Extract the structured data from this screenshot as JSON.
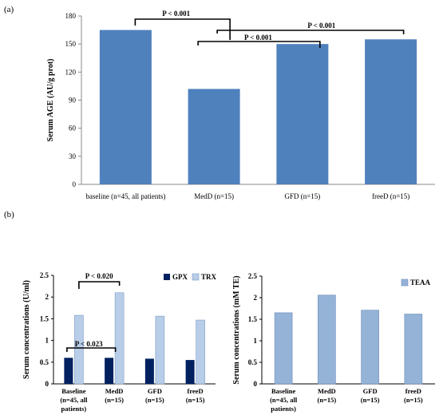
{
  "panel_labels": {
    "a": "(a)",
    "b": "(b)"
  },
  "chart_data": [
    {
      "type": "bar",
      "panel": "(a)",
      "ylabel": "Serum AGE (AU/g prot)",
      "ylim": [
        0,
        180
      ],
      "yticks": [
        "0",
        "30",
        "60",
        "90",
        "120",
        "150",
        "180"
      ],
      "categories": [
        "baseline (n=45, all patients)",
        "MedD (n=15)",
        "GFD (n=15)",
        "freeD (n=15)"
      ],
      "values": [
        165,
        102,
        150,
        155
      ],
      "color": "#4f81bd",
      "grid": false,
      "annotations": [
        {
          "text": "P < 0.001",
          "from": 0,
          "to": 1
        },
        {
          "text": "P < 0.001",
          "from": 1,
          "to": 2
        },
        {
          "text": "P < 0.001",
          "from": 1,
          "to": 3
        }
      ]
    },
    {
      "type": "bar",
      "panel": "(b) left",
      "ylabel": "Serum concentrations (U/ml)",
      "ylim": [
        0,
        2.5
      ],
      "yticks": [
        "0",
        "0.5",
        "1",
        "1.5",
        "2",
        "2.5"
      ],
      "categories": [
        [
          "Baseline",
          "(n=45, all",
          "patients)"
        ],
        [
          "MedD",
          "(n=15)"
        ],
        [
          "GFD",
          "(n=15)"
        ],
        [
          "freeD",
          "(n=15)"
        ]
      ],
      "series": [
        {
          "name": "GPX",
          "values": [
            0.6,
            0.6,
            0.58,
            0.55
          ],
          "color": "#002060"
        },
        {
          "name": "TRX",
          "values": [
            1.58,
            2.1,
            1.56,
            1.47
          ],
          "color": "#b7cde8"
        }
      ],
      "legend_position": "top-right",
      "grid": false,
      "annotations": [
        {
          "text": "P < 0.020",
          "series": "TRX",
          "from": 0,
          "to": 1
        },
        {
          "text": "P < 0.023",
          "series": "GPX",
          "from": 0,
          "to": 1
        }
      ]
    },
    {
      "type": "bar",
      "panel": "(b) right",
      "ylabel": "Serum concentrations (mM TE)",
      "ylim": [
        0,
        2.5
      ],
      "yticks": [
        "0",
        "0.5",
        "1",
        "1.5",
        "2",
        "2.5"
      ],
      "categories": [
        [
          "Baseline",
          "(n=45, all",
          "patients)"
        ],
        [
          "MedD",
          "(n=15)"
        ],
        [
          "GFD",
          "(n=15)"
        ],
        [
          "freeD",
          "(n=15)"
        ]
      ],
      "series": [
        {
          "name": "TEAA",
          "values": [
            1.65,
            2.06,
            1.71,
            1.62
          ],
          "color": "#95b3d7"
        }
      ],
      "legend_position": "top-right",
      "grid": false
    }
  ]
}
